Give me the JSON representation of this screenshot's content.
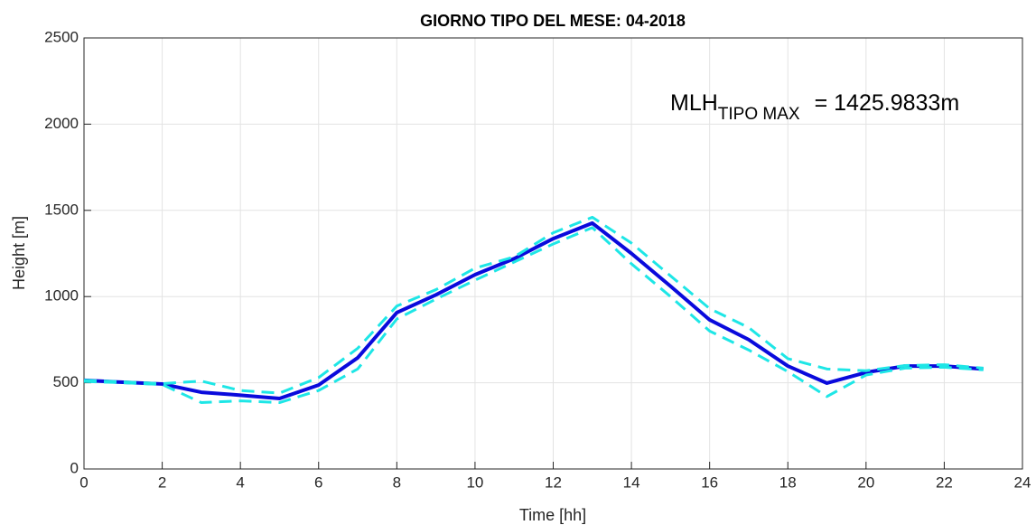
{
  "chart_data": {
    "type": "line",
    "title": "GIORNO TIPO DEL MESE:  04-2018",
    "x_label": "Time [hh]",
    "y_label": "Height [m]",
    "annotation": {
      "main": "MLH",
      "sub": "TIPO MAX",
      "rest": "= 1425.9833m"
    },
    "x": [
      0,
      1,
      2,
      3,
      4,
      5,
      6,
      7,
      8,
      9,
      10,
      11,
      12,
      13,
      14,
      15,
      16,
      17,
      18,
      19,
      20,
      21,
      22,
      23
    ],
    "series": [
      {
        "color": "#0a0adc",
        "line_style": "solid",
        "values": [
          514,
          503,
          493,
          445,
          428,
          409,
          487,
          645,
          907,
          1010,
          1127,
          1220,
          1336,
          1426,
          1250,
          1060,
          865,
          750,
          597,
          498,
          560,
          597,
          597,
          580
        ]
      },
      {
        "color": "#1ee6e6",
        "line_style": "dashed",
        "values": [
          515,
          505,
          495,
          510,
          455,
          440,
          530,
          700,
          945,
          1040,
          1165,
          1230,
          1370,
          1460,
          1310,
          1120,
          930,
          820,
          640,
          580,
          570,
          600,
          605,
          585
        ]
      },
      {
        "color": "#1ee6e6",
        "line_style": "dashed",
        "values": [
          508,
          500,
          490,
          385,
          395,
          385,
          455,
          580,
          870,
          985,
          1095,
          1200,
          1305,
          1400,
          1190,
          1000,
          800,
          690,
          565,
          420,
          545,
          585,
          590,
          575
        ]
      }
    ],
    "xlim": [
      0,
      24
    ],
    "ylim": [
      0,
      2500
    ],
    "xticks": [
      0,
      2,
      4,
      6,
      8,
      10,
      12,
      14,
      16,
      18,
      20,
      22,
      24
    ],
    "yticks": [
      0,
      500,
      1000,
      1500,
      2000,
      2500
    ],
    "grid": true
  }
}
